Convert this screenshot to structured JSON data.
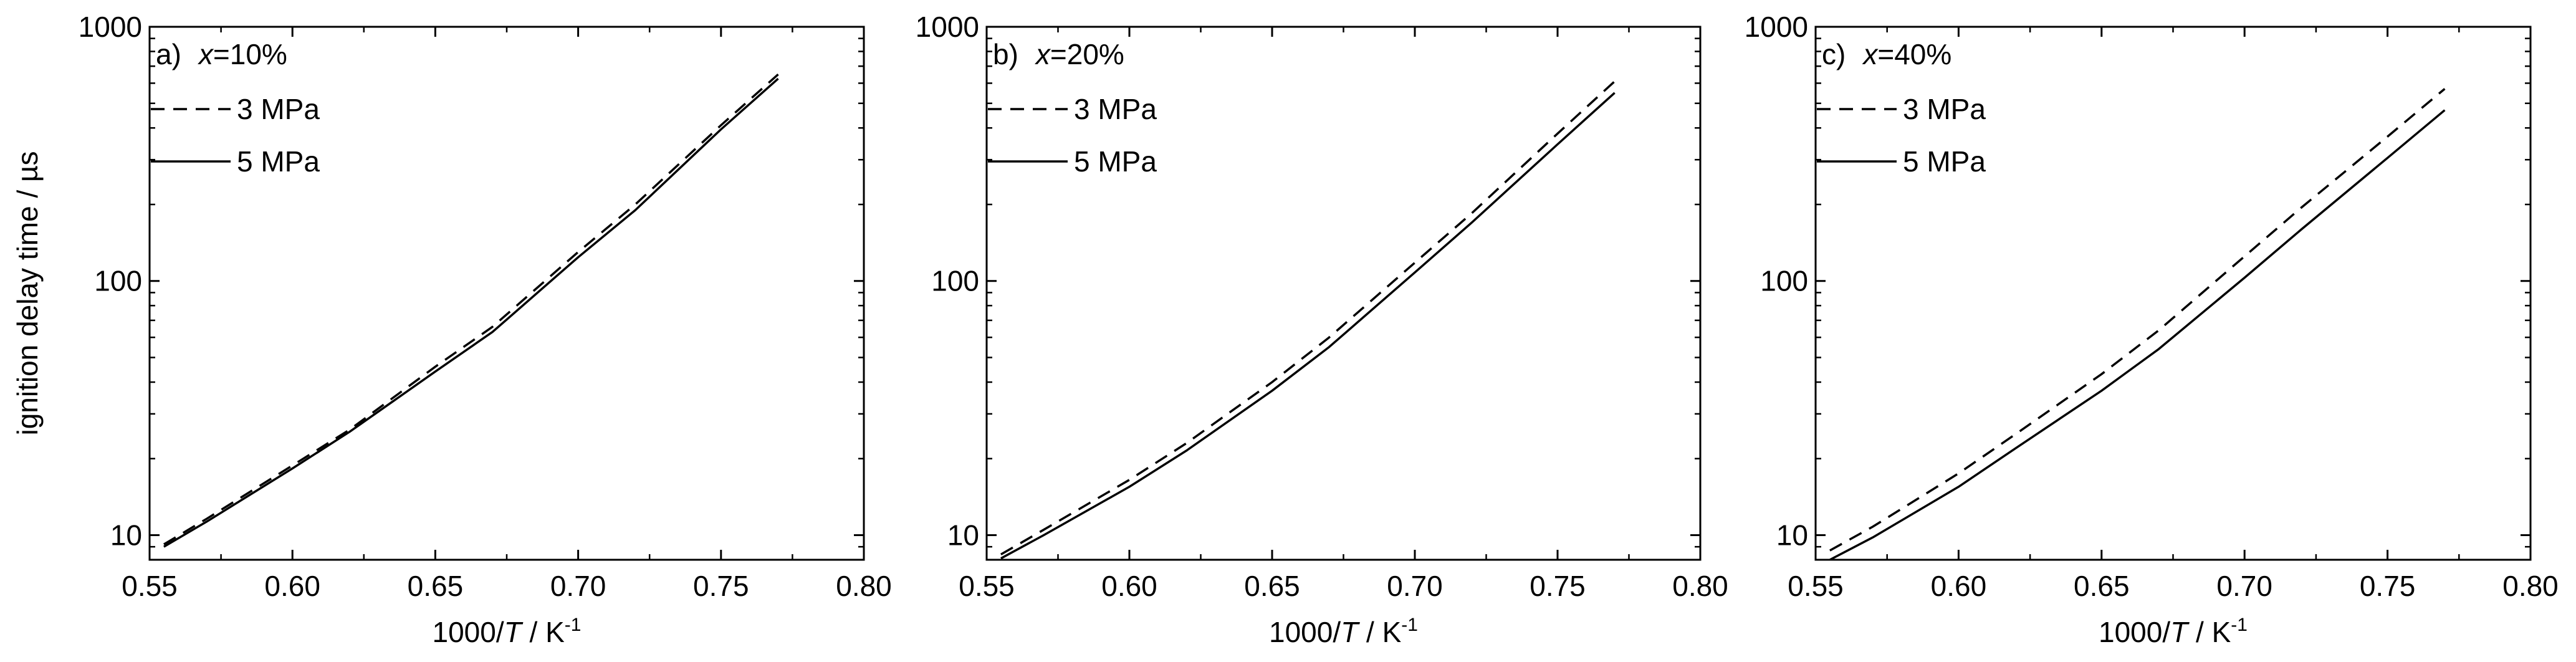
{
  "shared": {
    "ylabel": "ignition delay time / µs",
    "xlabel_prefix": "1000/",
    "xlabel_var": "T",
    "xlabel_unit": " / K",
    "xlabel_sup": "-1"
  },
  "chart_data": [
    {
      "type": "line",
      "panel_label": "a)",
      "title_var": "x",
      "title_value": "=10%",
      "xlabel": "1000/T / K-1",
      "ylabel": "ignition delay time / µs",
      "xlim": [
        0.55,
        0.8
      ],
      "ylim": [
        8,
        1000
      ],
      "yscale": "log",
      "xticks": [
        "0.55",
        "0.60",
        "0.65",
        "0.70",
        "0.75",
        "0.80"
      ],
      "yticks": [
        "10",
        "100",
        "1000"
      ],
      "legend_position": "top-left",
      "series": [
        {
          "name": "3 MPa",
          "dash": "dashed",
          "x": [
            0.555,
            0.57,
            0.6,
            0.62,
            0.65,
            0.67,
            0.7,
            0.72,
            0.75,
            0.77
          ],
          "y": [
            9.2,
            11.6,
            18.8,
            26,
            46,
            66,
            130,
            200,
            410,
            650
          ]
        },
        {
          "name": "5 MPa",
          "dash": "solid",
          "x": [
            0.555,
            0.57,
            0.6,
            0.62,
            0.65,
            0.67,
            0.7,
            0.72,
            0.75,
            0.77
          ],
          "y": [
            9.0,
            11.3,
            18.3,
            25.5,
            44,
            63,
            124,
            190,
            395,
            625
          ]
        }
      ]
    },
    {
      "type": "line",
      "panel_label": "b)",
      "title_var": "x",
      "title_value": "=20%",
      "xlabel": "1000/T / K-1",
      "ylabel": "",
      "xlim": [
        0.55,
        0.8
      ],
      "ylim": [
        8,
        1000
      ],
      "yscale": "log",
      "xticks": [
        "0.55",
        "0.60",
        "0.65",
        "0.70",
        "0.75",
        "0.80"
      ],
      "yticks": [
        "10",
        "100",
        "1000"
      ],
      "legend_position": "top-left",
      "series": [
        {
          "name": "3 MPa",
          "dash": "dashed",
          "x": [
            0.555,
            0.57,
            0.6,
            0.62,
            0.65,
            0.67,
            0.7,
            0.72,
            0.75,
            0.77
          ],
          "y": [
            8.4,
            10.5,
            16.5,
            23,
            40,
            60,
            118,
            185,
            380,
            610
          ]
        },
        {
          "name": "5 MPa",
          "dash": "solid",
          "x": [
            0.555,
            0.57,
            0.6,
            0.62,
            0.65,
            0.67,
            0.7,
            0.72,
            0.75,
            0.77
          ],
          "y": [
            8.1,
            10.0,
            15.5,
            21.5,
            37,
            55,
            108,
            170,
            345,
            550
          ]
        }
      ]
    },
    {
      "type": "line",
      "panel_label": "c)",
      "title_var": "x",
      "title_value": "=40%",
      "xlabel": "1000/T / K-1",
      "ylabel": "",
      "xlim": [
        0.55,
        0.8
      ],
      "ylim": [
        8,
        1000
      ],
      "yscale": "log",
      "xticks": [
        "0.55",
        "0.60",
        "0.65",
        "0.70",
        "0.75",
        "0.80"
      ],
      "yticks": [
        "10",
        "100",
        "1000"
      ],
      "legend_position": "top-left",
      "series": [
        {
          "name": "3 MPa",
          "dash": "dashed",
          "x": [
            0.555,
            0.57,
            0.6,
            0.62,
            0.65,
            0.67,
            0.7,
            0.72,
            0.75,
            0.77
          ],
          "y": [
            8.7,
            10.8,
            17.5,
            25,
            43,
            64,
            125,
            195,
            370,
            570
          ]
        },
        {
          "name": "5 MPa",
          "dash": "solid",
          "x": [
            0.555,
            0.57,
            0.6,
            0.62,
            0.65,
            0.67,
            0.7,
            0.72,
            0.75,
            0.77
          ],
          "y": [
            8.0,
            9.8,
            15.5,
            22,
            37,
            54,
            103,
            160,
            305,
            470
          ]
        }
      ]
    }
  ]
}
